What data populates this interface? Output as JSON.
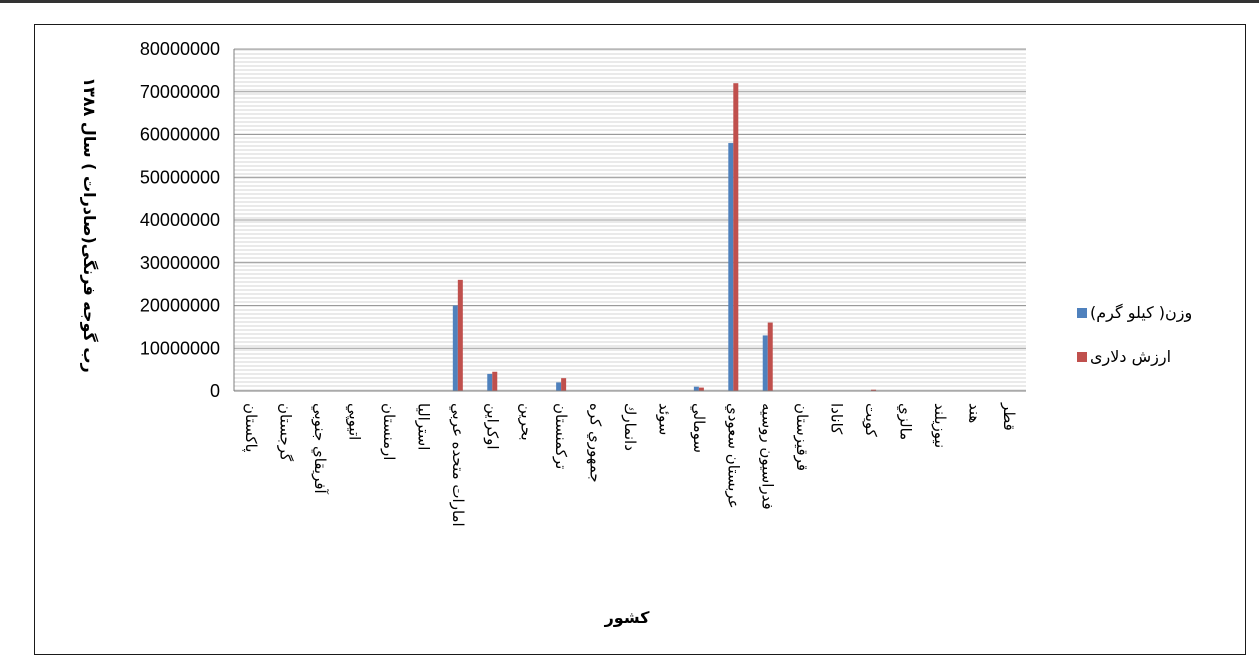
{
  "chart_data": {
    "type": "bar",
    "title": "",
    "xlabel": "کشور",
    "ylabel": "رب گوجه فرنگی(صادرات ) سال ۱۳۸۸",
    "ylim": [
      0,
      80000000
    ],
    "y_ticks": [
      "0",
      "10000000",
      "20000000",
      "30000000",
      "40000000",
      "50000000",
      "60000000",
      "70000000",
      "80000000"
    ],
    "grid": true,
    "legend_position": "right",
    "categories": [
      "پاكستان",
      "گرجستان",
      "آفريقاي جنوبي",
      "اتيوپي",
      "ارمنستان",
      "استراليا",
      "امارات متحده عربي",
      "اوكراين",
      "بحرين",
      "تركمنستان",
      "جمهوري كره",
      "دانمارك",
      "سوئد",
      "سومالي",
      "عربستان سعودي",
      "فدراسيون روسيه",
      "قرقيزستان",
      "كانادا",
      "كويت",
      "مالزي",
      "نيوزيلند",
      "هند",
      "قطر"
    ],
    "series": [
      {
        "name": "(کيلو گرم )وزن",
        "color": "#4f81bd",
        "values": [
          0,
          0,
          0,
          0,
          0,
          0,
          20000000,
          4000000,
          0,
          2000000,
          0,
          0,
          0,
          1000000,
          58000000,
          13000000,
          0,
          0,
          0,
          0,
          0,
          0,
          0
        ]
      },
      {
        "name": "ارزش دلاری",
        "color": "#c0504d",
        "values": [
          0,
          0,
          0,
          0,
          0,
          0,
          26000000,
          4500000,
          0,
          3000000,
          0,
          0,
          0,
          800000,
          72000000,
          16000000,
          0,
          0,
          300000,
          0,
          0,
          0,
          0
        ]
      }
    ]
  }
}
